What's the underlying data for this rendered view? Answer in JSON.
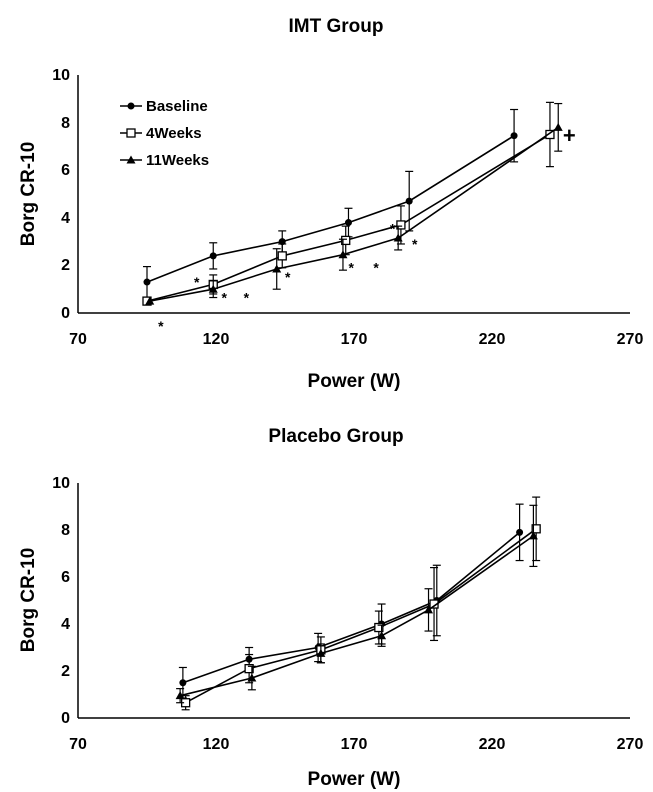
{
  "chart_data": [
    {
      "type": "line",
      "title": "IMT Group",
      "xlabel": "Power (W)",
      "ylabel": "Borg CR-10",
      "xlim": [
        70,
        270
      ],
      "ylim": [
        0,
        10
      ],
      "xticks": [
        "70",
        "120",
        "170",
        "220",
        "270"
      ],
      "yticks": [
        "0",
        "2",
        "4",
        "6",
        "8",
        "10"
      ],
      "legend_position": "top-left",
      "series": [
        {
          "name": "Baseline",
          "marker": "circle",
          "points": [
            {
              "x": 95,
              "y": 1.3,
              "err": 0.65
            },
            {
              "x": 119,
              "y": 2.4,
              "err": 0.55
            },
            {
              "x": 144,
              "y": 3.0,
              "err": 0.45
            },
            {
              "x": 168,
              "y": 3.8,
              "err": 0.6
            },
            {
              "x": 190,
              "y": 4.7,
              "err": 1.25
            },
            {
              "x": 228,
              "y": 7.45,
              "err": 1.1
            }
          ]
        },
        {
          "name": "4Weeks",
          "marker": "square",
          "points": [
            {
              "x": 95,
              "y": 0.5,
              "err": 0
            },
            {
              "x": 119,
              "y": 1.2,
              "err": 0.4
            },
            {
              "x": 144,
              "y": 2.4,
              "err": 0.5
            },
            {
              "x": 167,
              "y": 3.05,
              "err": 0.6
            },
            {
              "x": 187,
              "y": 3.7,
              "err": 0.8
            },
            {
              "x": 241,
              "y": 7.5,
              "err": 1.35
            }
          ]
        },
        {
          "name": "11Weeks",
          "marker": "triangle",
          "points": [
            {
              "x": 96,
              "y": 0.5,
              "err": 0
            },
            {
              "x": 119,
              "y": 1.0,
              "err": 0.35
            },
            {
              "x": 142,
              "y": 1.85,
              "err": 0.85
            },
            {
              "x": 166,
              "y": 2.45,
              "err": 0.65
            },
            {
              "x": 186,
              "y": 3.15,
              "err": 0.5
            },
            {
              "x": 244,
              "y": 7.8,
              "err": 1.0
            }
          ]
        }
      ],
      "annotations": [
        {
          "text": "*",
          "x": 100,
          "y": -0.5
        },
        {
          "text": "*",
          "x": 113,
          "y": 1.35
        },
        {
          "text": "*",
          "x": 123,
          "y": 0.7
        },
        {
          "text": "*",
          "x": 131,
          "y": 0.7
        },
        {
          "text": "*",
          "x": 146,
          "y": 1.55
        },
        {
          "text": "*",
          "x": 169,
          "y": 1.95
        },
        {
          "text": "*",
          "x": 178,
          "y": 1.95
        },
        {
          "text": "*",
          "x": 184,
          "y": 3.6
        },
        {
          "text": "*",
          "x": 192,
          "y": 2.95
        },
        {
          "text": "+",
          "x": 248,
          "y": 7.4
        }
      ]
    },
    {
      "type": "line",
      "title": "Placebo Group",
      "xlabel": "Power (W)",
      "ylabel": "Borg CR-10",
      "xlim": [
        70,
        270
      ],
      "ylim": [
        0,
        10
      ],
      "xticks": [
        "70",
        "120",
        "170",
        "220",
        "270"
      ],
      "yticks": [
        "0",
        "2",
        "4",
        "6",
        "8",
        "10"
      ],
      "series": [
        {
          "name": "Baseline",
          "marker": "circle",
          "points": [
            {
              "x": 108,
              "y": 1.5,
              "err": 0.65
            },
            {
              "x": 132,
              "y": 2.5,
              "err": 0.5
            },
            {
              "x": 157,
              "y": 3.0,
              "err": 0.6
            },
            {
              "x": 180,
              "y": 4.0,
              "err": 0.85
            },
            {
              "x": 200,
              "y": 5.0,
              "err": 1.5
            },
            {
              "x": 230,
              "y": 7.9,
              "err": 1.2
            }
          ]
        },
        {
          "name": "4Weeks",
          "marker": "square",
          "points": [
            {
              "x": 109,
              "y": 0.65,
              "err": 0.3
            },
            {
              "x": 132,
              "y": 2.1,
              "err": 0.6
            },
            {
              "x": 158,
              "y": 2.9,
              "err": 0.55
            },
            {
              "x": 179,
              "y": 3.85,
              "err": 0.7
            },
            {
              "x": 199,
              "y": 4.85,
              "err": 1.55
            },
            {
              "x": 236,
              "y": 8.05,
              "err": 1.35
            }
          ]
        },
        {
          "name": "11Weeks",
          "marker": "triangle",
          "points": [
            {
              "x": 107,
              "y": 0.95,
              "err": 0.3
            },
            {
              "x": 133,
              "y": 1.7,
              "err": 0.5
            },
            {
              "x": 158,
              "y": 2.75,
              "err": 0.4
            },
            {
              "x": 180,
              "y": 3.5,
              "err": 0.45
            },
            {
              "x": 197,
              "y": 4.6,
              "err": 0.9
            },
            {
              "x": 235,
              "y": 7.75,
              "err": 1.3
            }
          ]
        }
      ]
    }
  ]
}
